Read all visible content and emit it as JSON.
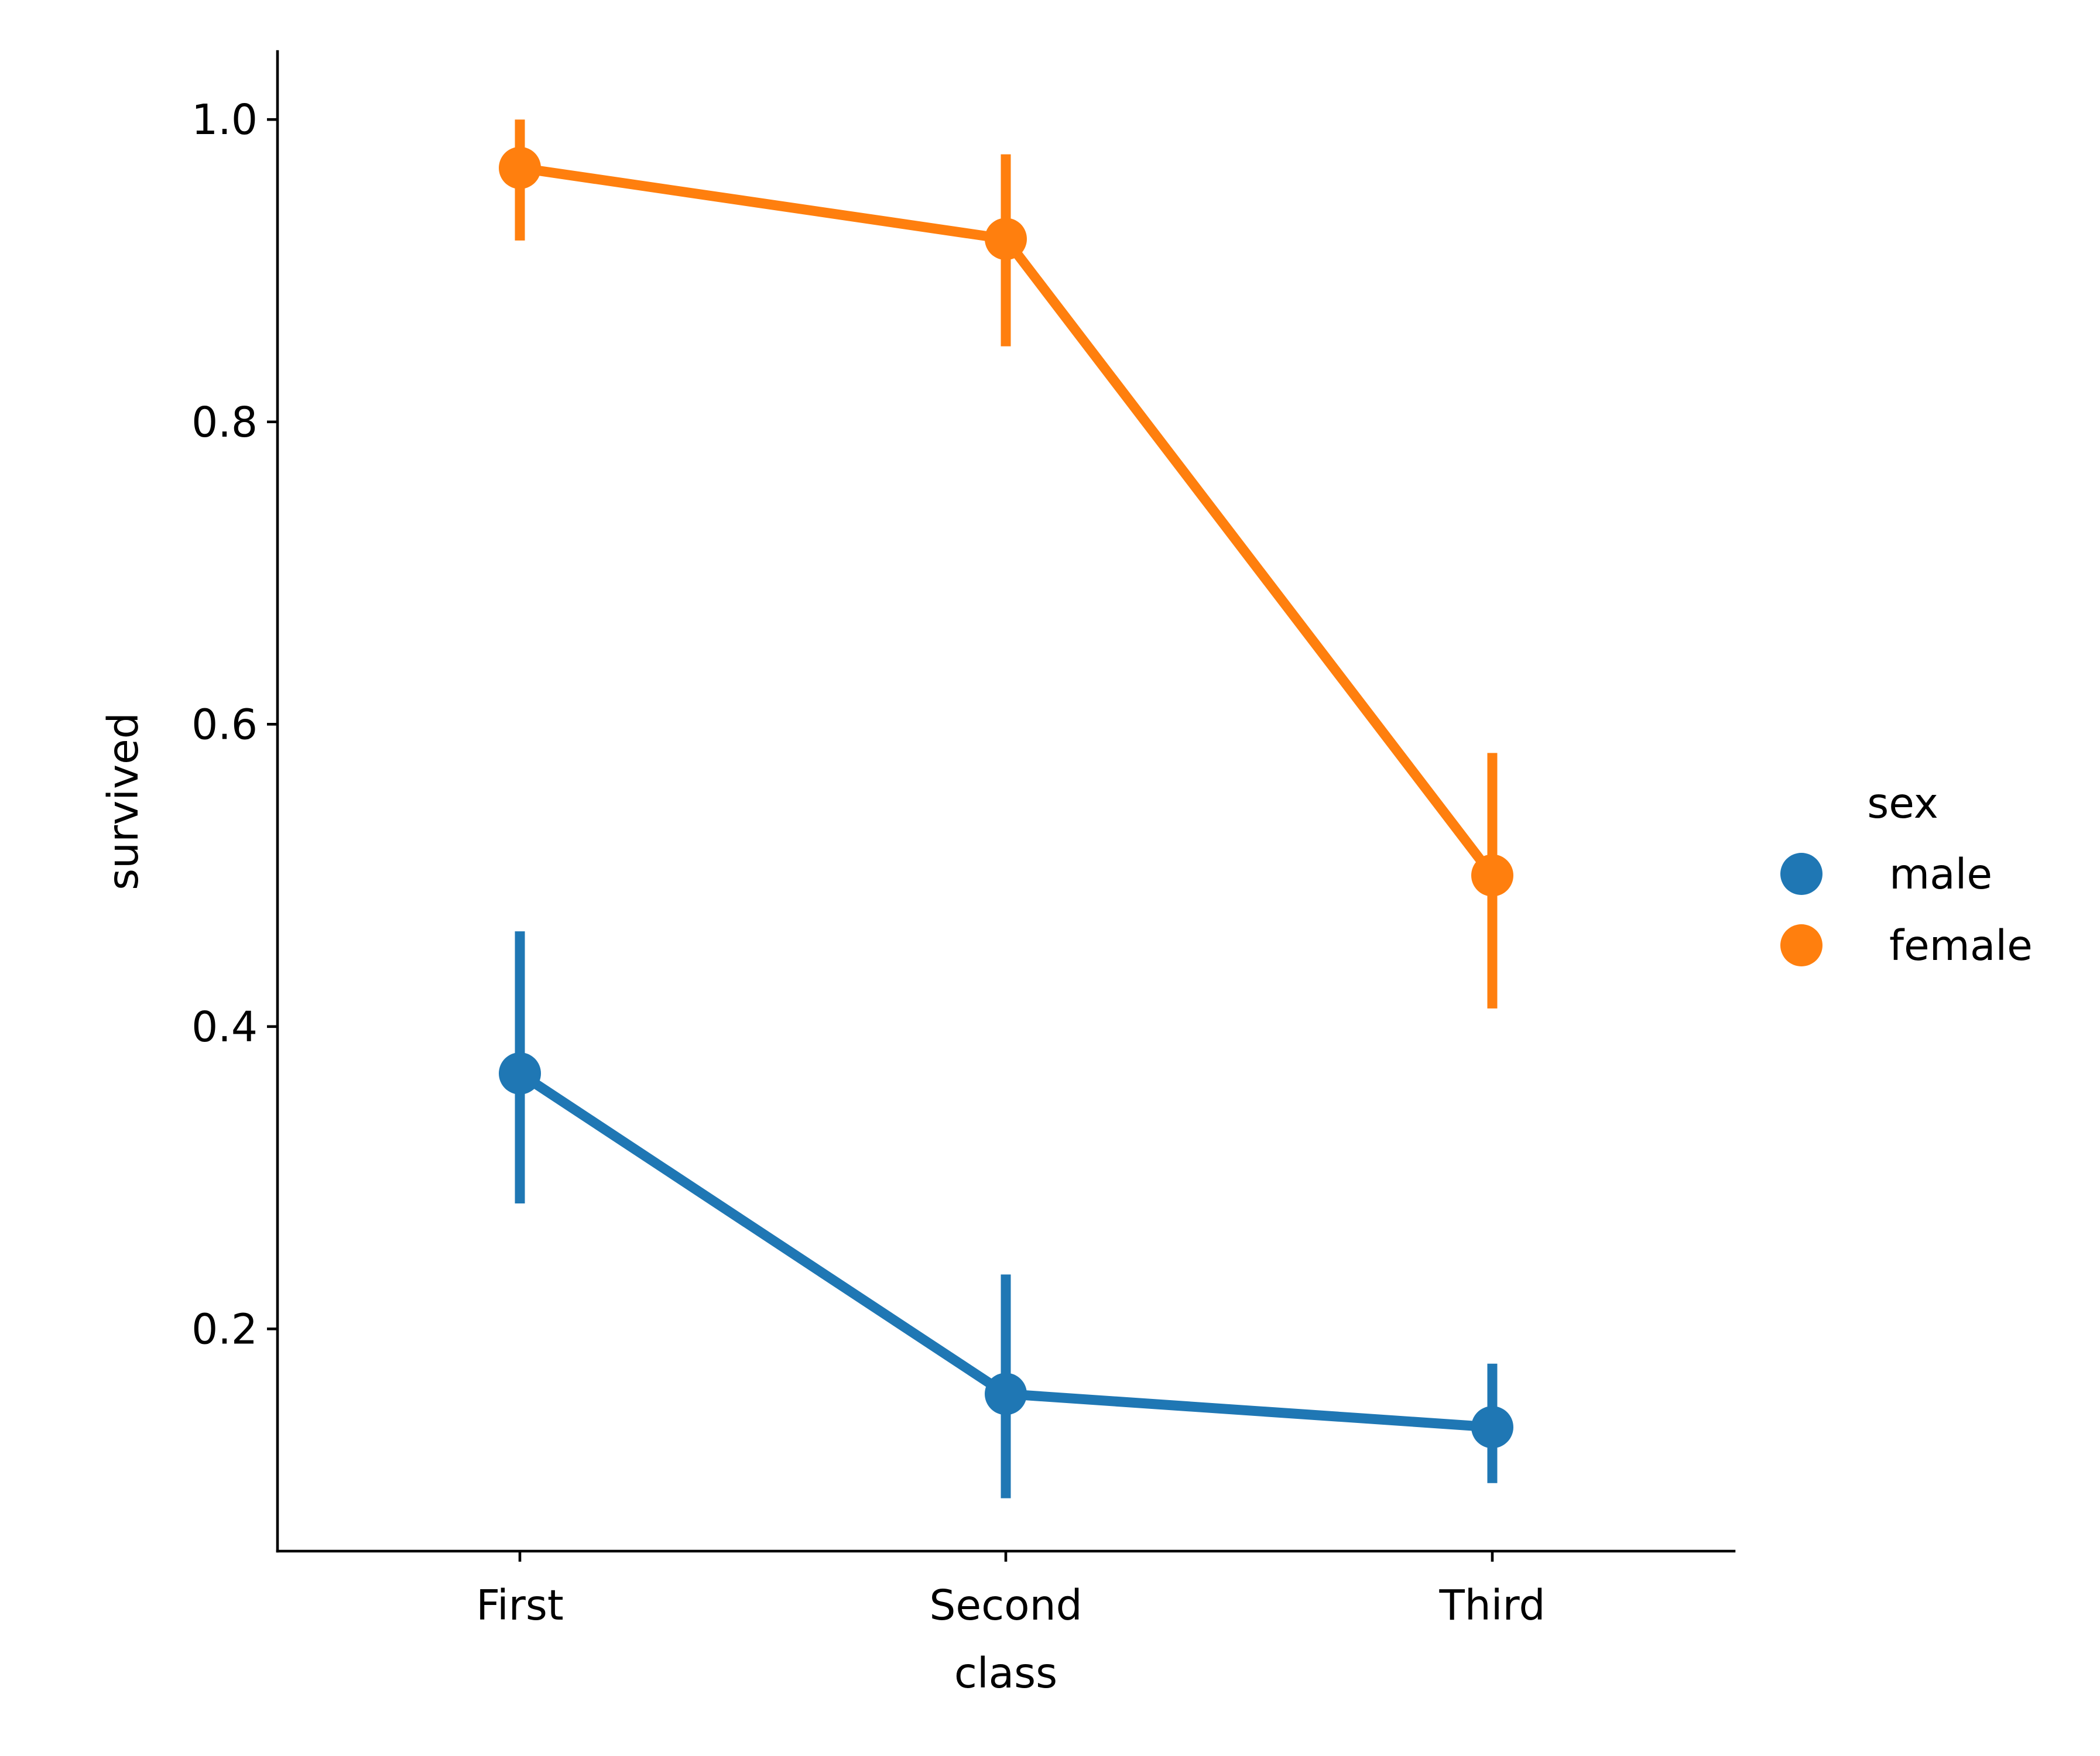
{
  "chart_data": {
    "type": "line",
    "categories": [
      "First",
      "Second",
      "Third"
    ],
    "xlabel": "class",
    "ylabel": "survived",
    "ylim": [
      0.053,
      1.045
    ],
    "yticks": [
      0.2,
      0.4,
      0.6,
      0.8,
      1.0
    ],
    "ytick_labels": [
      "0.2",
      "0.4",
      "0.6",
      "0.8",
      "1.0"
    ],
    "grid": false,
    "legend": {
      "title": "sex",
      "placement": "right",
      "entries": [
        "male",
        "female"
      ]
    },
    "series": [
      {
        "name": "male",
        "color": "#1f77b4",
        "values": [
          0.369,
          0.157,
          0.135
        ],
        "ci_low": [
          0.283,
          0.088,
          0.098
        ],
        "ci_high": [
          0.463,
          0.236,
          0.177
        ]
      },
      {
        "name": "female",
        "color": "#ff7f0e",
        "values": [
          0.968,
          0.921,
          0.5
        ],
        "ci_low": [
          0.92,
          0.85,
          0.412
        ],
        "ci_high": [
          1.0,
          0.977,
          0.581
        ]
      }
    ]
  }
}
